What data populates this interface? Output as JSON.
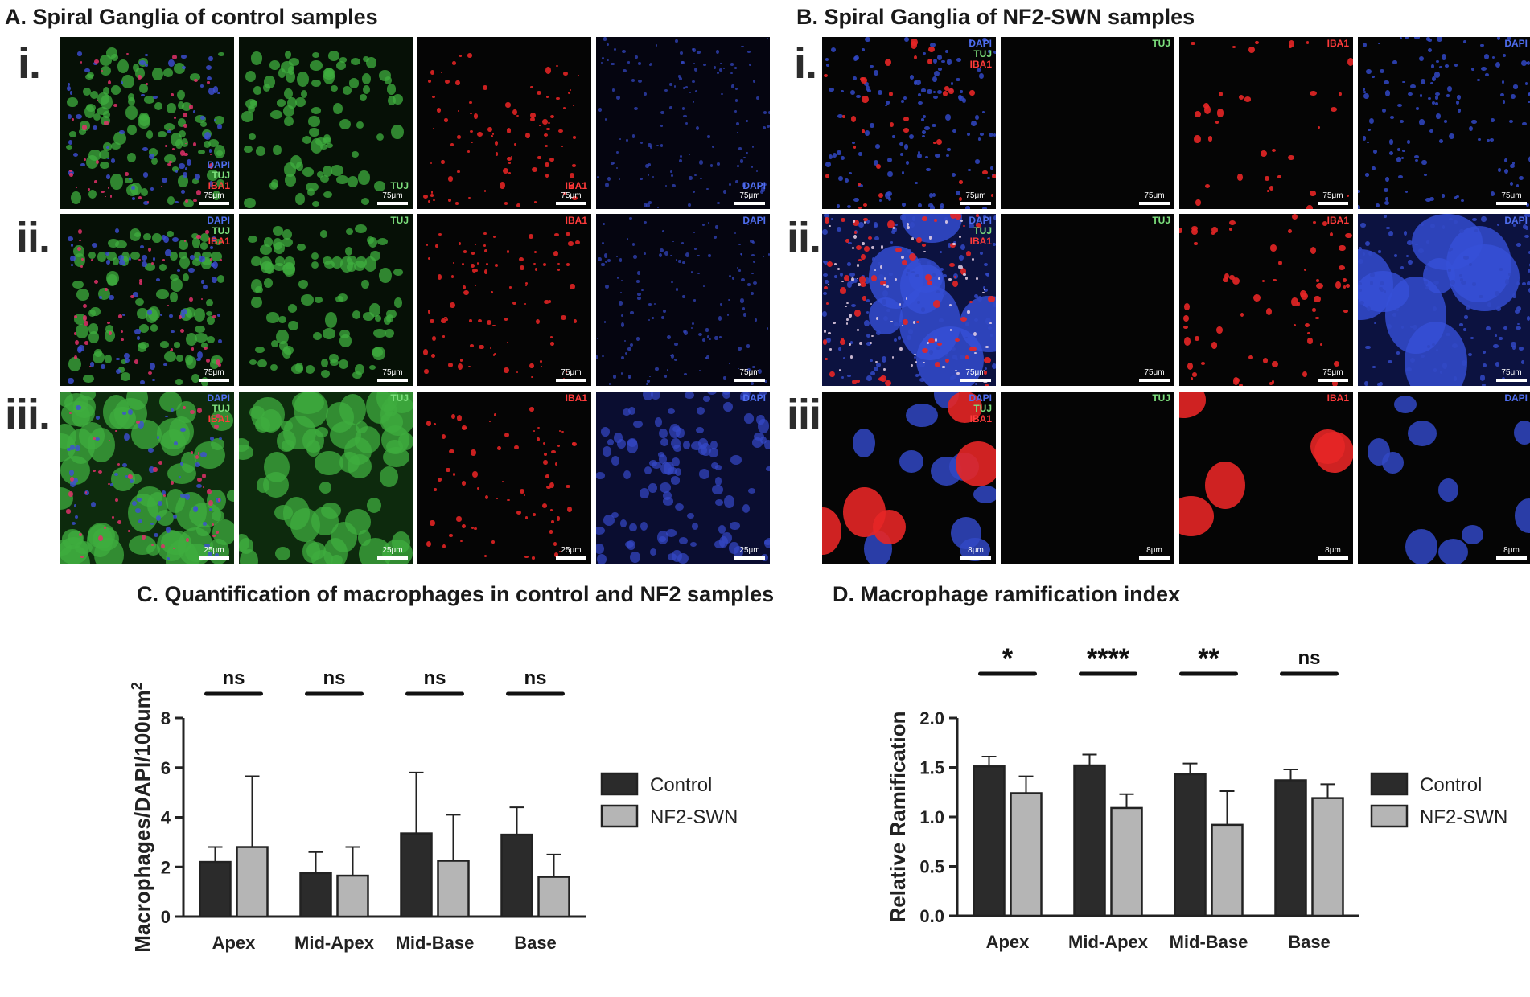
{
  "panels": {
    "A": {
      "title": "A. Spiral Ganglia of control samples",
      "rows": [
        {
          "label": "i.",
          "scale": "75μm"
        },
        {
          "label": "ii.",
          "scale": "75μm"
        },
        {
          "label": "iii.",
          "scale": "25μm"
        }
      ]
    },
    "B": {
      "title": "B. Spiral Ganglia of NF2-SWN samples",
      "rows": [
        {
          "label": "i.",
          "scale": "75μm"
        },
        {
          "label": "ii.",
          "scale": "75μm"
        },
        {
          "label": "iii.",
          "scale": "8μm"
        }
      ]
    },
    "C": {
      "title": "C. Quantification of macrophages in control and NF2 samples"
    },
    "D": {
      "title": "D. Macrophage ramification index"
    }
  },
  "channels": {
    "dapi": "DAPI",
    "tuj": "TUJ",
    "iba1": "IBA1"
  },
  "colors": {
    "dapi": "#4f6ef0",
    "tuj": "#7de07d",
    "iba1": "#ff3b3b",
    "control_bar": "#2b2b2b",
    "nf2_bar": "#b5b5b5"
  },
  "chart_data": [
    {
      "type": "bar",
      "title": "C. Quantification of macrophages in control and NF2 samples",
      "xlabel": "",
      "ylabel": "Macrophages/DAPI/100um²",
      "ylim": [
        0,
        8
      ],
      "yticks": [
        "0",
        "2",
        "4",
        "6",
        "8"
      ],
      "categories": [
        "Apex",
        "Mid-Apex",
        "Mid-Base",
        "Base"
      ],
      "series": [
        {
          "name": "Control",
          "values": [
            2.2,
            1.75,
            3.35,
            3.3
          ],
          "error": [
            0.6,
            0.85,
            2.45,
            1.1
          ]
        },
        {
          "name": "NF2-SWN",
          "values": [
            2.8,
            1.65,
            2.25,
            1.6
          ],
          "error": [
            2.85,
            1.15,
            1.85,
            0.9
          ]
        }
      ],
      "significance": [
        "ns",
        "ns",
        "ns",
        "ns"
      ],
      "legend": "right"
    },
    {
      "type": "bar",
      "title": "D. Macrophage ramification index",
      "xlabel": "",
      "ylabel": "Relative Ramification",
      "ylim": [
        0,
        2.0
      ],
      "yticks": [
        "0.0",
        "0.5",
        "1.0",
        "1.5",
        "2.0"
      ],
      "categories": [
        "Apex",
        "Mid-Apex",
        "Mid-Base",
        "Base"
      ],
      "series": [
        {
          "name": "Control",
          "values": [
            1.51,
            1.52,
            1.43,
            1.37
          ],
          "error": [
            0.1,
            0.11,
            0.11,
            0.11
          ]
        },
        {
          "name": "NF2-SWN",
          "values": [
            1.24,
            1.09,
            0.92,
            1.19
          ],
          "error": [
            0.17,
            0.14,
            0.34,
            0.14
          ]
        }
      ],
      "significance": [
        "*",
        "****",
        "**",
        "ns"
      ],
      "legend": "right"
    }
  ]
}
